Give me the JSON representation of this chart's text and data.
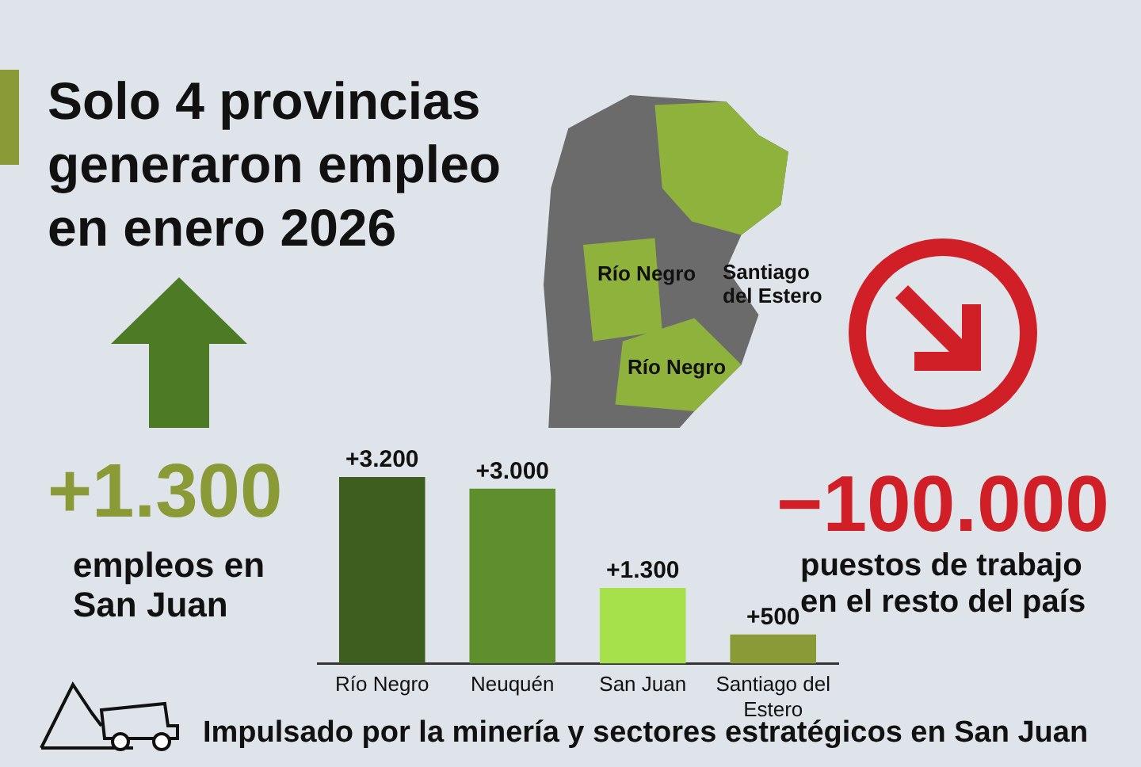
{
  "chart_data": {
    "type": "bar",
    "title": "Solo 4 provincias generaron empleo en enero 2026",
    "categories": [
      "Río Negro",
      "Neuquén",
      "San Juan",
      "Santiago del Estero"
    ],
    "values": [
      3200,
      3000,
      1300,
      500
    ],
    "colors": [
      "#3d5e1e",
      "#5f8f2c",
      "#a6e04a",
      "#8a9a36"
    ],
    "value_labels": [
      "+3.200",
      "+3.000",
      "+1.300",
      "+500"
    ],
    "annotations": [
      "+1.300",
      "empleos en San Juan",
      "−100.000",
      "puestos de trabajo en el resto del país",
      "Impulsado por la minería y sectores estratégicos en San Juan",
      "Río Negro",
      "Santiago del Estero",
      "Río Negro"
    ],
    "grid": false,
    "legend": false
  }
}
